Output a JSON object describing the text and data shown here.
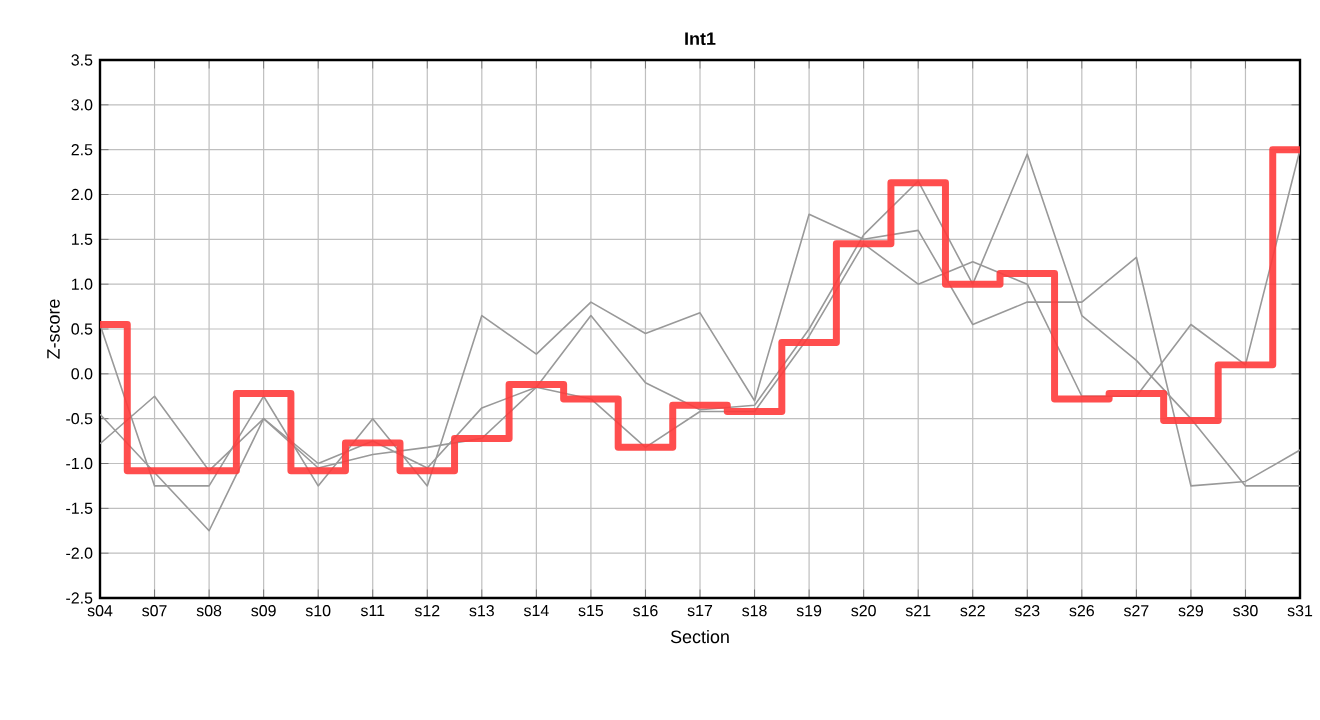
{
  "chart_data": {
    "type": "line",
    "title": "Int1",
    "xlabel": "Section",
    "ylabel": "Z-score",
    "categories": [
      "s04",
      "s07",
      "s08",
      "s09",
      "s10",
      "s11",
      "s12",
      "s13",
      "s14",
      "s15",
      "s16",
      "s17",
      "s18",
      "s19",
      "s20",
      "s21",
      "s22",
      "s23",
      "s26",
      "s27",
      "s29",
      "s30",
      "s31"
    ],
    "series": [
      {
        "color": "#999999",
        "values": [
          0.55,
          -1.25,
          -1.25,
          -0.25,
          -1.25,
          -0.5,
          -1.25,
          0.65,
          0.22,
          0.8,
          0.45,
          0.68,
          -0.3,
          1.78,
          1.5,
          1.6,
          0.55,
          0.8,
          0.8,
          1.3,
          -1.25,
          -1.2,
          -0.85
        ]
      },
      {
        "color": "#999999",
        "values": [
          -0.45,
          -1.1,
          -1.75,
          -0.5,
          -1.0,
          -0.75,
          -1.05,
          -0.38,
          -0.15,
          0.65,
          -0.1,
          -0.4,
          -0.35,
          0.5,
          1.55,
          2.15,
          1.0,
          2.45,
          0.65,
          0.15,
          -0.5,
          -1.25,
          -1.25
        ]
      },
      {
        "color": "#999999",
        "values": [
          -0.78,
          -0.25,
          -1.08,
          -0.5,
          -1.05,
          -0.9,
          -0.82,
          -0.72,
          -0.15,
          -0.28,
          -0.82,
          -0.42,
          -0.42,
          0.42,
          1.45,
          1.0,
          1.25,
          1.0,
          -0.25,
          -0.25,
          0.55,
          0.1,
          2.5
        ]
      },
      {
        "type": "step",
        "color": "#ff3b3b",
        "values": [
          0.55,
          -1.08,
          -1.08,
          -0.22,
          -1.08,
          -0.77,
          -1.08,
          -0.72,
          -0.12,
          -0.28,
          -0.82,
          -0.35,
          -0.42,
          0.35,
          1.45,
          2.13,
          1.0,
          1.12,
          -0.28,
          -0.22,
          -0.52,
          0.1,
          2.5
        ]
      }
    ],
    "ylim": [
      -2.5,
      3.5
    ],
    "yticks": [
      -2.5,
      {
        "value": -2,
        "label": "-2.0"
      },
      -1.5,
      {
        "value": -1,
        "label": "-1.0"
      },
      -0.5,
      {
        "value": 0,
        "label": "0.0"
      },
      0.5,
      {
        "value": 1,
        "label": "1.0"
      },
      1.5,
      {
        "value": 2,
        "label": "2.0"
      },
      2.5,
      {
        "value": 3,
        "label": "3.0"
      },
      3.5
    ],
    "grid": true,
    "marker": "none",
    "line_style": "solid"
  }
}
